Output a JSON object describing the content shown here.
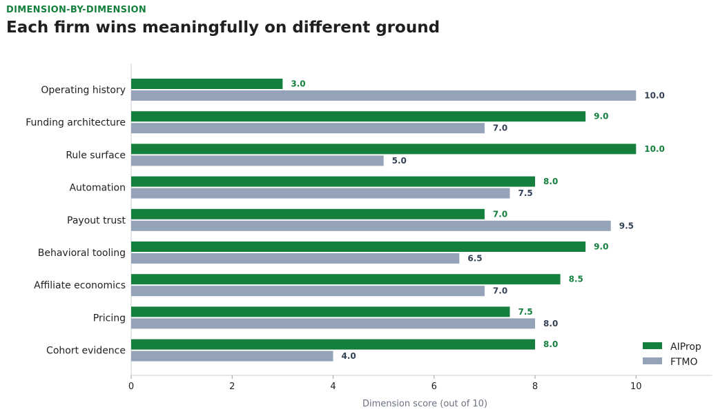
{
  "header": {
    "eyebrow": "DIMENSION-BY-DIMENSION",
    "title": "Each firm wins meaningfully on different ground"
  },
  "colors": {
    "aiprop": "#15803d",
    "ftmo": "#94a3b8",
    "aiprop_label": "#15803d",
    "ftmo_label": "#334155"
  },
  "chart_data": {
    "type": "bar",
    "orientation": "horizontal",
    "categories": [
      "Operating history",
      "Funding architecture",
      "Rule surface",
      "Automation",
      "Payout trust",
      "Behavioral tooling",
      "Affiliate economics",
      "Pricing",
      "Cohort evidence"
    ],
    "series": [
      {
        "name": "AIProp",
        "values": [
          3.0,
          9.0,
          10.0,
          8.0,
          7.0,
          9.0,
          8.5,
          7.5,
          8.0
        ]
      },
      {
        "name": "FTMO",
        "values": [
          10.0,
          7.0,
          5.0,
          7.5,
          9.5,
          6.5,
          7.0,
          8.0,
          4.0
        ]
      }
    ],
    "xlabel": "Dimension score (out of 10)",
    "ylabel": "",
    "xlim": [
      0,
      11.5
    ],
    "xticks": [
      0,
      2,
      4,
      6,
      8,
      10
    ],
    "grid": false,
    "legend": "bottom-right",
    "data_labels": true
  }
}
